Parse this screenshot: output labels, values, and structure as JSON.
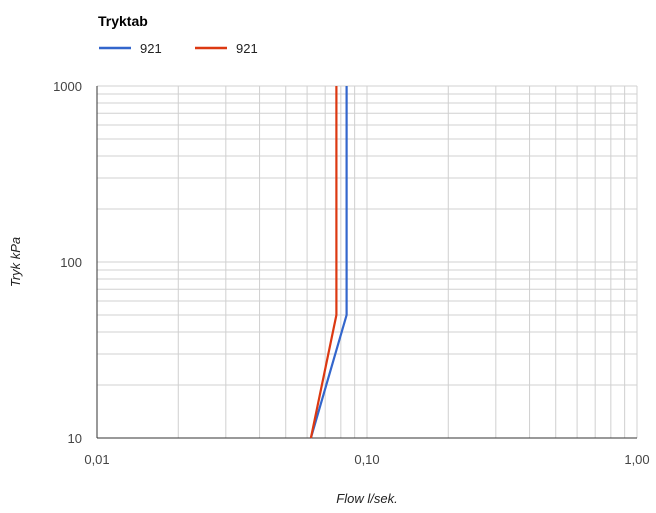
{
  "chart_data": {
    "type": "line",
    "title": "Tryktab",
    "xlabel": "Flow l/sek.",
    "ylabel": "Tryk kPa",
    "x_scale": "log",
    "y_scale": "log",
    "xlim": [
      0.01,
      1.0
    ],
    "ylim": [
      10,
      1000
    ],
    "x_ticks": [
      {
        "value": 0.01,
        "label": "0,01"
      },
      {
        "value": 0.1,
        "label": "0,10"
      },
      {
        "value": 1.0,
        "label": "1,00"
      }
    ],
    "y_ticks": [
      {
        "value": 10,
        "label": "10"
      },
      {
        "value": 100,
        "label": "100"
      },
      {
        "value": 1000,
        "label": "1000"
      }
    ],
    "grid": true,
    "legend_position": "top-left",
    "series": [
      {
        "name": "921",
        "color": "#3366cc",
        "points": [
          {
            "x": 0.062,
            "y": 10
          },
          {
            "x": 0.084,
            "y": 50
          },
          {
            "x": 0.084,
            "y": 1000
          }
        ]
      },
      {
        "name": "921",
        "color": "#dc3912",
        "points": [
          {
            "x": 0.062,
            "y": 10
          },
          {
            "x": 0.077,
            "y": 50
          },
          {
            "x": 0.077,
            "y": 1000
          }
        ]
      }
    ]
  }
}
